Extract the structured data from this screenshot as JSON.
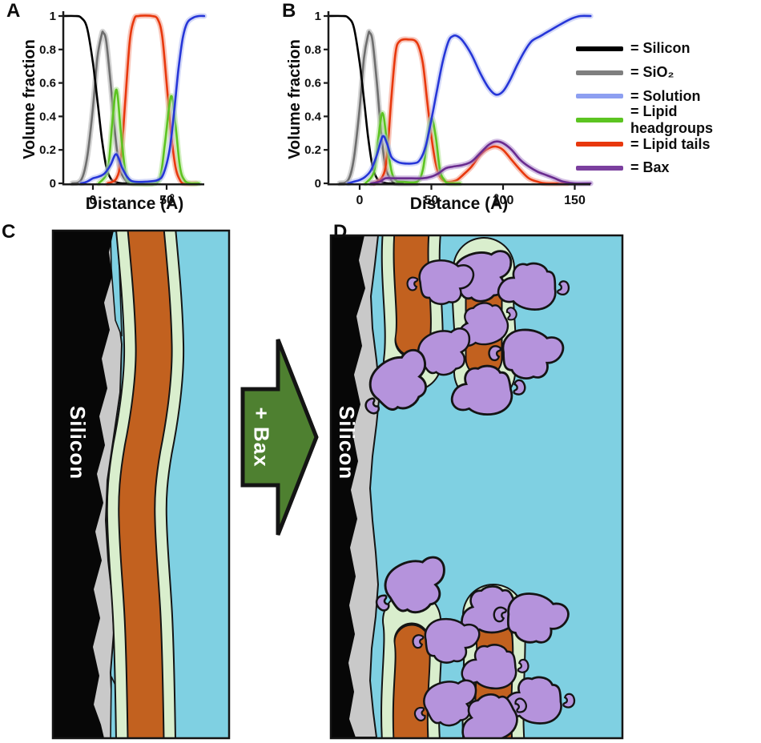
{
  "figure": {
    "panel_labels": {
      "a": "A",
      "b": "B",
      "c": "C",
      "d": "D"
    },
    "arrow_label": "+ Bax",
    "silicon_label": "Silicon"
  },
  "legend": {
    "items": [
      {
        "label": "= Silicon",
        "color": "#000000"
      },
      {
        "label": "= SiO₂",
        "color": "#7f7f7f"
      },
      {
        "label": "= Solution",
        "color": "#8d9ff1"
      },
      {
        "label": "= Lipid headgroups",
        "color": "#5cc421"
      },
      {
        "label": "= Lipid tails",
        "color": "#e8380d"
      },
      {
        "label": "= Bax",
        "color": "#7b3f9e"
      }
    ]
  },
  "schematic_colors": {
    "silicon": "#070707",
    "sio2": "#c9c9c9",
    "solution": "#7fd0e2",
    "headgroups": "#d9eecd",
    "tails": "#c2611f",
    "bax": "#b593dc",
    "outline": "#141414",
    "arrow_green": "#4e8030"
  },
  "chart_data": [
    {
      "id": "A",
      "type": "line",
      "xlabel": "Distance (Å)",
      "ylabel": "Volume fraction",
      "xlim": [
        -20,
        75.5
      ],
      "ylim": [
        0,
        1
      ],
      "x_ticks": [
        0,
        50
      ],
      "y_ticks": [
        0,
        0.2,
        0.4,
        0.6,
        0.8,
        1
      ],
      "grid": false,
      "legend_position": "none",
      "series": [
        {
          "name": "SiO2",
          "color": "#6e6e6e",
          "band": "#a8a8a8",
          "points": [
            [
              -14,
              0
            ],
            [
              -8,
              0.02
            ],
            [
              -4,
              0.15
            ],
            [
              0,
              0.45
            ],
            [
              3,
              0.75
            ],
            [
              6,
              0.89
            ],
            [
              7,
              0.9
            ],
            [
              9,
              0.85
            ],
            [
              12,
              0.6
            ],
            [
              15,
              0.3
            ],
            [
              18,
              0.1
            ],
            [
              22,
              0.02
            ],
            [
              26,
              0
            ],
            [
              40,
              0
            ]
          ]
        },
        {
          "name": "Silicon",
          "color": "#000000",
          "band": null,
          "points": [
            [
              -20,
              1
            ],
            [
              -12,
              1
            ],
            [
              -8,
              0.99
            ],
            [
              -4,
              0.93
            ],
            [
              0,
              0.72
            ],
            [
              3,
              0.5
            ],
            [
              6,
              0.27
            ],
            [
              9,
              0.1
            ],
            [
              12,
              0.03
            ],
            [
              15,
              0.01
            ],
            [
              20,
              0
            ],
            [
              30,
              0
            ]
          ]
        },
        {
          "name": "Lipid tails",
          "color": "#e8380d",
          "band": "#f2907a",
          "points": [
            [
              10,
              0
            ],
            [
              16,
              0.03
            ],
            [
              19,
              0.15
            ],
            [
              22,
              0.5
            ],
            [
              25,
              0.85
            ],
            [
              28,
              0.98
            ],
            [
              31,
              1
            ],
            [
              40,
              1
            ],
            [
              44,
              0.98
            ],
            [
              47,
              0.88
            ],
            [
              50,
              0.6
            ],
            [
              53,
              0.3
            ],
            [
              56,
              0.1
            ],
            [
              59,
              0.02
            ],
            [
              62,
              0
            ],
            [
              70,
              0
            ]
          ]
        },
        {
          "name": "Lipid headgroups",
          "color": "#5cc421",
          "band": "#a5e083",
          "points": [
            [
              4,
              0
            ],
            [
              10,
              0.08
            ],
            [
              13,
              0.35
            ],
            [
              16,
              0.56
            ],
            [
              19,
              0.3
            ],
            [
              22,
              0.07
            ],
            [
              25,
              0.01
            ],
            [
              30,
              0
            ],
            [
              42,
              0
            ],
            [
              46,
              0.05
            ],
            [
              49,
              0.25
            ],
            [
              53,
              0.52
            ],
            [
              56,
              0.35
            ],
            [
              59,
              0.1
            ],
            [
              62,
              0.02
            ],
            [
              66,
              0
            ],
            [
              72,
              0
            ]
          ]
        },
        {
          "name": "Solution",
          "color": "#2636d8",
          "band": "#a9b4f2",
          "points": [
            [
              -8,
              0
            ],
            [
              -4,
              0.01
            ],
            [
              0,
              0.03
            ],
            [
              4,
              0.04
            ],
            [
              8,
              0.06
            ],
            [
              12,
              0.11
            ],
            [
              15,
              0.17
            ],
            [
              17,
              0.16
            ],
            [
              20,
              0.09
            ],
            [
              24,
              0.03
            ],
            [
              28,
              0.01
            ],
            [
              36,
              0.01
            ],
            [
              44,
              0.02
            ],
            [
              48,
              0.06
            ],
            [
              52,
              0.2
            ],
            [
              55,
              0.42
            ],
            [
              58,
              0.68
            ],
            [
              61,
              0.87
            ],
            [
              64,
              0.96
            ],
            [
              68,
              0.99
            ],
            [
              72,
              1
            ],
            [
              75.5,
              1
            ]
          ]
        }
      ]
    },
    {
      "id": "B",
      "type": "line",
      "xlabel": "Distance (Å)",
      "ylabel": "Volume fraction",
      "xlim": [
        -22,
        161
      ],
      "ylim": [
        0,
        1
      ],
      "x_ticks": [
        0,
        50,
        100,
        150
      ],
      "y_ticks": [
        0,
        0.2,
        0.4,
        0.6,
        0.8,
        1
      ],
      "grid": false,
      "legend_position": "right",
      "series": [
        {
          "name": "SiO2",
          "color": "#6e6e6e",
          "band": "#a8a8a8",
          "points": [
            [
              -14,
              0
            ],
            [
              -8,
              0.02
            ],
            [
              -4,
              0.15
            ],
            [
              0,
              0.45
            ],
            [
              3,
              0.75
            ],
            [
              6,
              0.89
            ],
            [
              7,
              0.9
            ],
            [
              9,
              0.85
            ],
            [
              12,
              0.6
            ],
            [
              15,
              0.3
            ],
            [
              18,
              0.1
            ],
            [
              22,
              0.02
            ],
            [
              26,
              0
            ],
            [
              40,
              0
            ]
          ]
        },
        {
          "name": "Silicon",
          "color": "#000000",
          "band": null,
          "points": [
            [
              -22,
              1
            ],
            [
              -12,
              1
            ],
            [
              -8,
              0.99
            ],
            [
              -4,
              0.93
            ],
            [
              0,
              0.72
            ],
            [
              3,
              0.5
            ],
            [
              6,
              0.27
            ],
            [
              9,
              0.1
            ],
            [
              12,
              0.03
            ],
            [
              15,
              0.01
            ],
            [
              20,
              0
            ],
            [
              30,
              0
            ]
          ]
        },
        {
          "name": "Lipid tails",
          "color": "#e8380d",
          "band": "#f2907a",
          "points": [
            [
              10,
              0
            ],
            [
              16,
              0.04
            ],
            [
              19,
              0.16
            ],
            [
              22,
              0.5
            ],
            [
              25,
              0.78
            ],
            [
              28,
              0.85
            ],
            [
              34,
              0.86
            ],
            [
              40,
              0.84
            ],
            [
              44,
              0.72
            ],
            [
              47,
              0.5
            ],
            [
              50,
              0.28
            ],
            [
              53,
              0.12
            ],
            [
              56,
              0.04
            ],
            [
              60,
              0.01
            ],
            [
              64,
              0.01
            ],
            [
              68,
              0.02
            ],
            [
              72,
              0.05
            ],
            [
              78,
              0.1
            ],
            [
              84,
              0.17
            ],
            [
              90,
              0.21
            ],
            [
              95,
              0.22
            ],
            [
              100,
              0.2
            ],
            [
              106,
              0.14
            ],
            [
              112,
              0.08
            ],
            [
              118,
              0.03
            ],
            [
              124,
              0.01
            ],
            [
              130,
              0
            ],
            [
              145,
              0
            ]
          ]
        },
        {
          "name": "Lipid headgroups",
          "color": "#5cc421",
          "band": "#a5e083",
          "points": [
            [
              4,
              0
            ],
            [
              10,
              0.07
            ],
            [
              13,
              0.27
            ],
            [
              16,
              0.42
            ],
            [
              19,
              0.25
            ],
            [
              22,
              0.08
            ],
            [
              25,
              0.02
            ],
            [
              30,
              0.01
            ],
            [
              40,
              0.01
            ],
            [
              44,
              0.08
            ],
            [
              47,
              0.25
            ],
            [
              50,
              0.39
            ],
            [
              53,
              0.28
            ],
            [
              56,
              0.08
            ],
            [
              59,
              0.02
            ],
            [
              62,
              0
            ],
            [
              70,
              0
            ]
          ]
        },
        {
          "name": "Bax",
          "color": "#6a2c8f",
          "band": "#a77fc9",
          "points": [
            [
              8,
              0
            ],
            [
              14,
              0.01
            ],
            [
              18,
              0.03
            ],
            [
              24,
              0.03
            ],
            [
              36,
              0.03
            ],
            [
              44,
              0.03
            ],
            [
              50,
              0.04
            ],
            [
              55,
              0.06
            ],
            [
              60,
              0.09
            ],
            [
              65,
              0.1
            ],
            [
              72,
              0.11
            ],
            [
              78,
              0.13
            ],
            [
              84,
              0.18
            ],
            [
              90,
              0.23
            ],
            [
              95,
              0.25
            ],
            [
              100,
              0.24
            ],
            [
              106,
              0.2
            ],
            [
              112,
              0.14
            ],
            [
              118,
              0.1
            ],
            [
              124,
              0.07
            ],
            [
              130,
              0.05
            ],
            [
              136,
              0.03
            ],
            [
              142,
              0.01
            ],
            [
              150,
              0
            ],
            [
              161,
              0
            ]
          ]
        },
        {
          "name": "Solution",
          "color": "#2636d8",
          "band": "#a9b4f2",
          "points": [
            [
              -8,
              0
            ],
            [
              -4,
              0.01
            ],
            [
              0,
              0.02
            ],
            [
              4,
              0.04
            ],
            [
              8,
              0.08
            ],
            [
              12,
              0.17
            ],
            [
              16,
              0.28
            ],
            [
              19,
              0.24
            ],
            [
              22,
              0.16
            ],
            [
              26,
              0.13
            ],
            [
              30,
              0.12
            ],
            [
              38,
              0.12
            ],
            [
              42,
              0.14
            ],
            [
              46,
              0.22
            ],
            [
              50,
              0.38
            ],
            [
              54,
              0.56
            ],
            [
              58,
              0.73
            ],
            [
              62,
              0.85
            ],
            [
              65,
              0.88
            ],
            [
              68,
              0.88
            ],
            [
              72,
              0.85
            ],
            [
              78,
              0.77
            ],
            [
              84,
              0.66
            ],
            [
              90,
              0.57
            ],
            [
              95,
              0.53
            ],
            [
              100,
              0.55
            ],
            [
              105,
              0.62
            ],
            [
              110,
              0.71
            ],
            [
              115,
              0.79
            ],
            [
              120,
              0.85
            ],
            [
              126,
              0.88
            ],
            [
              132,
              0.91
            ],
            [
              140,
              0.95
            ],
            [
              148,
              0.985
            ],
            [
              154,
              1
            ],
            [
              161,
              1
            ]
          ]
        }
      ]
    }
  ]
}
